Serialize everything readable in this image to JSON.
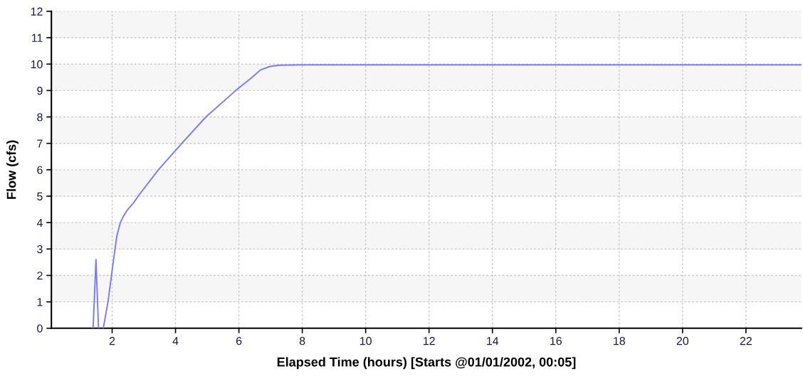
{
  "chart_data": {
    "type": "line",
    "xlabel": "Elapsed Time (hours) [Starts @01/01/2002, 00:05]",
    "ylabel": "Flow (cfs)",
    "x": [
      1.4,
      1.49,
      1.57,
      1.65,
      1.72,
      1.78,
      1.87,
      1.98,
      2.09,
      2.15,
      2.26,
      2.36,
      2.47,
      2.69,
      2.82,
      3.46,
      4.2,
      4.96,
      5.9,
      6.38,
      6.68,
      6.98,
      7.28,
      8.0,
      10,
      14,
      18,
      22,
      23.75
    ],
    "series": [
      {
        "color": "#7b7bf5",
        "values": [
          0,
          2.6,
          0,
          null,
          0,
          0.4,
          1,
          2,
          3,
          3.5,
          4,
          4.25,
          4.46,
          4.77,
          5,
          6,
          7,
          8,
          9,
          9.46,
          9.78,
          9.91,
          9.96,
          9.97,
          9.97,
          9.97,
          9.97,
          9.97,
          9.97
        ]
      }
    ],
    "xlim": [
      0.083,
      23.75
    ],
    "xticks": [
      2,
      4,
      6,
      8,
      10,
      12,
      14,
      16,
      18,
      20,
      22
    ],
    "ylim": [
      0,
      12
    ],
    "yticks": [
      0,
      1,
      2,
      3,
      4,
      5,
      6,
      7,
      8,
      9,
      10,
      11,
      12
    ],
    "grid": true,
    "line_style": "solid",
    "bands": [
      {
        "axis": "y",
        "from": 1,
        "to": 2,
        "color": "#f6f6f6"
      },
      {
        "axis": "y",
        "from": 3,
        "to": 4,
        "color": "#f6f6f6"
      },
      {
        "axis": "y",
        "from": 5,
        "to": 6,
        "color": "#f6f6f6"
      },
      {
        "axis": "y",
        "from": 7,
        "to": 8,
        "color": "#f6f6f6"
      },
      {
        "axis": "y",
        "from": 9,
        "to": 10,
        "color": "#f6f6f6"
      },
      {
        "axis": "y",
        "from": 11,
        "to": 12,
        "color": "#f6f6f6"
      }
    ]
  }
}
